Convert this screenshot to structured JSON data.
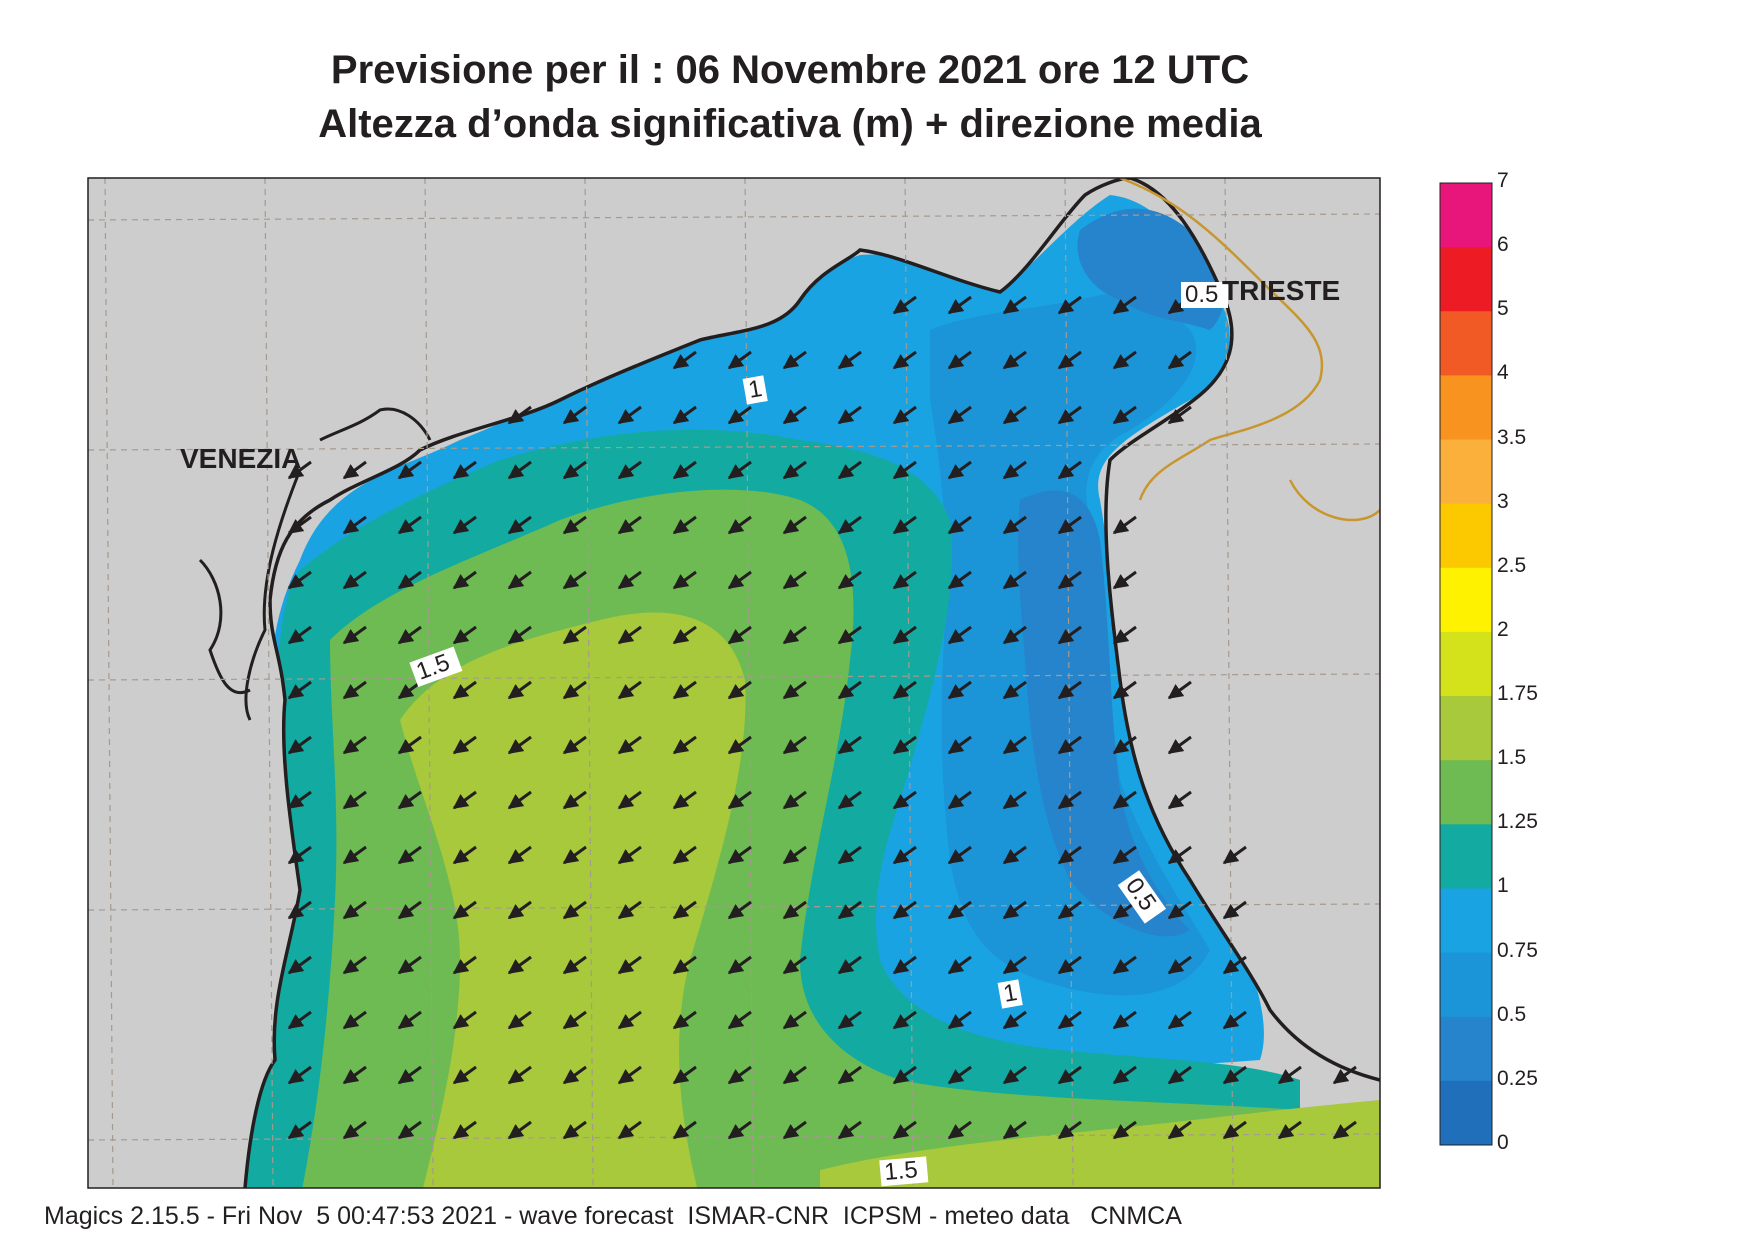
{
  "header": {
    "line1": "Previsione per il  :  06 Novembre  2021   ore 12 UTC",
    "line2": "Altezza d’onda significativa (m) + direzione media"
  },
  "map": {
    "cities": [
      {
        "name": "VENEZIA"
      },
      {
        "name": "TRIESTE"
      }
    ],
    "contour_labels": [
      "0.5",
      "1",
      "1.5",
      "0.5",
      "1",
      "1.5"
    ],
    "colors": {
      "land": "#cdcdcd",
      "coast": "#231f20",
      "border": "#c8962e",
      "grid": "#a59a8e",
      "band_0_25": "#1f6fba",
      "band_0_25_0_5": "#2684cc",
      "band_0_5_0_75": "#1b95d8",
      "band_0_75_1": "#1aa3e2",
      "band_1_1_25": "#13aba1",
      "band_1_25_1_5": "#6dbb52",
      "band_1_5_1_75": "#a7c93b"
    },
    "arrow_direction": "south-west"
  },
  "legend": {
    "levels": [
      "7",
      "6",
      "5",
      "4",
      "3.5",
      "3",
      "2.5",
      "2",
      "1.75",
      "1.5",
      "1.25",
      "1",
      "0.75",
      "0.5",
      "0.25",
      "0"
    ],
    "colors": [
      "#e8167a",
      "#ed1c24",
      "#f15a24",
      "#f7931e",
      "#fbb03b",
      "#fcc800",
      "#fff200",
      "#d4e21b",
      "#a7c93b",
      "#6dbb52",
      "#13aba1",
      "#1aa3e2",
      "#1b95d8",
      "#2684cc",
      "#1f6fba"
    ]
  },
  "footer": {
    "text": "Magics 2.15.5 - Fri Nov  5 00:47:53 2021 - wave forecast  ISMAR-CNR  ICPSM - meteo data   CNMCA"
  }
}
